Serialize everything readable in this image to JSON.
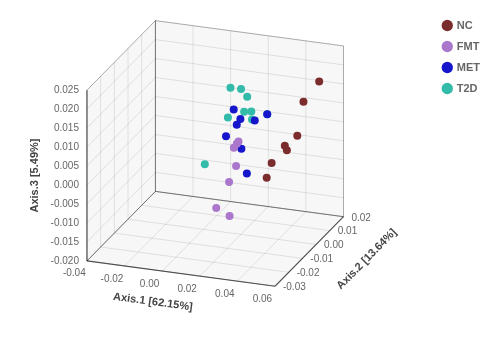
{
  "chart_data": {
    "type": "scatter3d",
    "xlabel": "Axis.1 [62.15%]",
    "ylabel": "Axis.2 [13.64%]",
    "zlabel": "Axis.3 [5.49%]",
    "series": [
      {
        "name": "NC",
        "color": "#7B2D2D",
        "values": [
          [
            0.058,
            0.005,
            0.021
          ],
          [
            0.046,
            0.01,
            0.013
          ],
          [
            0.05,
            0.0,
            0.008
          ],
          [
            0.047,
            -0.005,
            0.007
          ],
          [
            0.043,
            0.002,
            0.003
          ],
          [
            0.04,
            -0.005,
            0.002
          ],
          [
            0.041,
            -0.01,
            0.0
          ]
        ]
      },
      {
        "name": "FMT",
        "color": "#AA77CC",
        "values": [
          [
            0.02,
            -0.003,
            0.005
          ],
          [
            0.018,
            0.001,
            0.004
          ],
          [
            0.017,
            -0.001,
            0.003
          ],
          [
            0.016,
            0.002,
            -0.003
          ],
          [
            0.013,
            0.001,
            -0.007
          ],
          [
            0.012,
            -0.007,
            -0.011
          ],
          [
            0.022,
            -0.011,
            -0.011
          ]
        ]
      },
      {
        "name": "MET",
        "color": "#1515CC",
        "values": [
          [
            0.022,
            -0.008,
            0.016
          ],
          [
            0.02,
            -0.003,
            0.01
          ],
          [
            0.019,
            0.001,
            0.01
          ],
          [
            0.023,
            0.006,
            0.008
          ],
          [
            0.026,
            0.011,
            0.008
          ],
          [
            0.015,
            -0.004,
            0.007
          ],
          [
            0.021,
            -0.001,
            0.003
          ],
          [
            0.021,
            0.003,
            -0.005
          ]
        ]
      },
      {
        "name": "T2D",
        "color": "#33BBAA",
        "values": [
          [
            0.021,
            -0.009,
            0.022
          ],
          [
            0.023,
            -0.004,
            0.02
          ],
          [
            0.019,
            0.006,
            0.014
          ],
          [
            0.021,
            0.001,
            0.012
          ],
          [
            0.016,
            -0.004,
            0.012
          ],
          [
            0.019,
            0.009,
            0.009
          ],
          [
            0.023,
            0.004,
            0.009
          ],
          [
            0.026,
            0.011,
            0.008
          ],
          [
            0.011,
            -0.014,
            0.003
          ]
        ]
      }
    ],
    "xlim": [
      -0.04,
      0.06
    ],
    "ylim": [
      -0.03,
      0.02
    ],
    "zlim": [
      -0.02,
      0.025
    ],
    "xticks": [
      -0.04,
      -0.02,
      {
        "value": 0,
        "label": "0.00"
      },
      0.02,
      0.04,
      0.06
    ],
    "yticks": [
      -0.03,
      -0.02,
      -0.01,
      {
        "value": 0,
        "label": "0.00"
      },
      0.01,
      0.02
    ],
    "zticks": [
      {
        "value": -0.02,
        "label": "-0.020"
      },
      -0.015,
      {
        "value": -0.01,
        "label": "-0.010"
      },
      -0.005,
      {
        "value": 0,
        "label": "0.000"
      },
      0.005,
      {
        "value": 0.01,
        "label": "0.010"
      },
      0.015,
      {
        "value": 0.02,
        "label": "0.020"
      },
      0.025
    ],
    "grid": true,
    "legend": "right",
    "marker": "circle"
  }
}
